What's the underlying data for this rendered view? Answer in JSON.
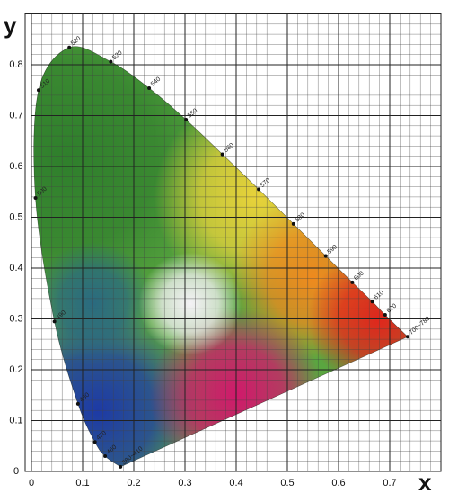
{
  "chart_data": {
    "type": "line",
    "x_label": "x",
    "y_label": "y",
    "x": [
      0.174,
      0.144,
      0.124,
      0.091,
      0.045,
      0.008,
      0.014,
      0.074,
      0.155,
      0.23,
      0.302,
      0.373,
      0.444,
      0.512,
      0.575,
      0.627,
      0.666,
      0.691,
      0.735
    ],
    "y": [
      0.009,
      0.03,
      0.058,
      0.133,
      0.295,
      0.538,
      0.75,
      0.834,
      0.806,
      0.754,
      0.692,
      0.624,
      0.555,
      0.487,
      0.424,
      0.372,
      0.334,
      0.308,
      0.265
    ],
    "point_labels": [
      "380~410",
      "460",
      "470",
      "480",
      "490",
      "500",
      "510",
      "520",
      "530",
      "540",
      "550",
      "560",
      "570",
      "580",
      "590",
      "600",
      "610",
      "620",
      "700~780"
    ],
    "color": "#111111",
    "xlim": [
      0,
      0.8
    ],
    "ylim": [
      0,
      0.9
    ],
    "xticks": [
      0,
      0.1,
      0.2,
      0.3,
      0.4,
      0.5,
      0.6,
      0.7
    ],
    "yticks": [
      0,
      0.1,
      0.2,
      0.3,
      0.4,
      0.5,
      0.6,
      0.7,
      0.8
    ],
    "grid": true,
    "minor_divisions": 5
  }
}
